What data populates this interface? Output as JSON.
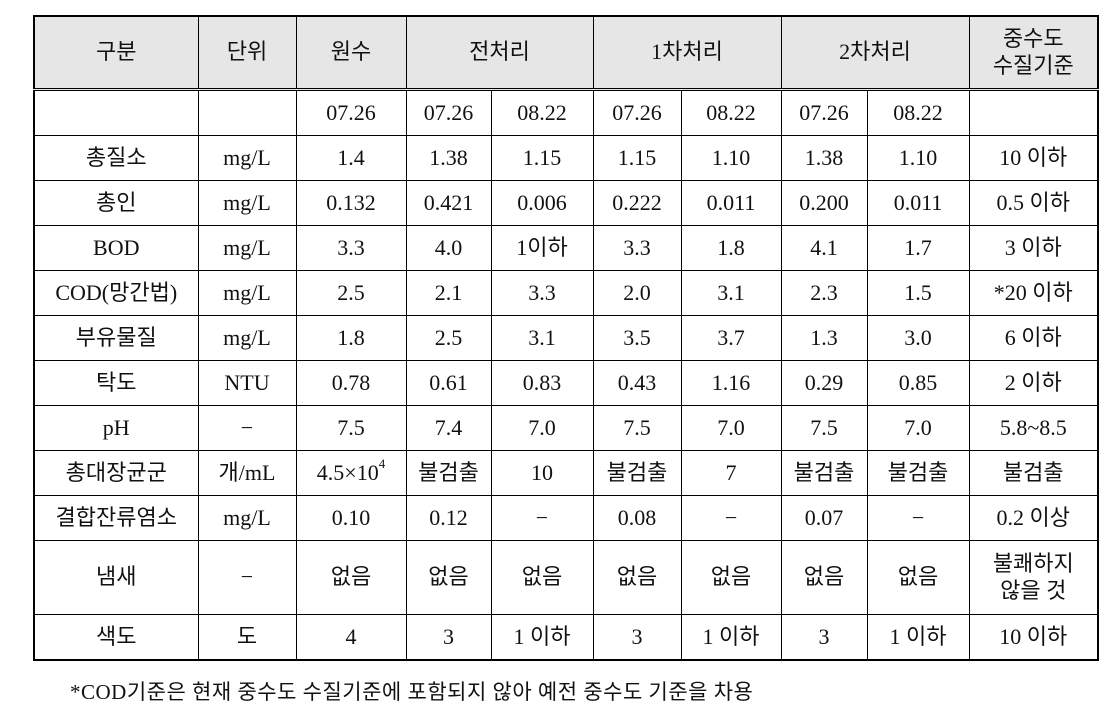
{
  "table": {
    "header": [
      "구분",
      "단위",
      "원수",
      "전처리",
      "1차처리",
      "2차처리",
      "중수도\n수질기준"
    ],
    "header_spans": [
      1,
      1,
      1,
      2,
      2,
      2,
      1
    ],
    "dates": [
      "07.26",
      "07.26",
      "08.22",
      "07.26",
      "08.22",
      "07.26",
      "08.22"
    ],
    "rows": [
      [
        "총질소",
        "mg/L",
        "1.4",
        "1.38",
        "1.15",
        "1.15",
        "1.10",
        "1.38",
        "1.10",
        "10 이하"
      ],
      [
        "총인",
        "mg/L",
        "0.132",
        "0.421",
        "0.006",
        "0.222",
        "0.011",
        "0.200",
        "0.011",
        "0.5 이하"
      ],
      [
        "BOD",
        "mg/L",
        "3.3",
        "4.0",
        "1이하",
        "3.3",
        "1.8",
        "4.1",
        "1.7",
        "3 이하"
      ],
      [
        "COD(망간법)",
        "mg/L",
        "2.5",
        "2.1",
        "3.3",
        "2.0",
        "3.1",
        "2.3",
        "1.5",
        "*20 이하"
      ],
      [
        "부유물질",
        "mg/L",
        "1.8",
        "2.5",
        "3.1",
        "3.5",
        "3.7",
        "1.3",
        "3.0",
        "6 이하"
      ],
      [
        "탁도",
        "NTU",
        "0.78",
        "0.61",
        "0.83",
        "0.43",
        "1.16",
        "0.29",
        "0.85",
        "2 이하"
      ],
      [
        "pH",
        "−",
        "7.5",
        "7.4",
        "7.0",
        "7.5",
        "7.0",
        "7.5",
        "7.0",
        "5.8~8.5"
      ],
      [
        "총대장균군",
        "개/mL",
        {
          "base": "4.5×10",
          "sup": "4"
        },
        "불검출",
        "10",
        "불검출",
        "7",
        "불검출",
        "불검출",
        "불검출"
      ],
      [
        "결합잔류염소",
        "mg/L",
        "0.10",
        "0.12",
        "−",
        "0.08",
        "−",
        "0.07",
        "−",
        "0.2 이상"
      ],
      [
        "냄새",
        "−",
        "없음",
        "없음",
        "없음",
        "없음",
        "없음",
        "없음",
        "없음",
        "불쾌하지\n않을 것"
      ],
      [
        "색도",
        "도",
        "4",
        "3",
        "1 이하",
        "3",
        "1 이하",
        "3",
        "1 이하",
        "10 이하"
      ]
    ]
  },
  "footnote": "*COD기준은 현재 중수도 수질기준에 포함되지 않아 예전 중수도 기준을 차용"
}
